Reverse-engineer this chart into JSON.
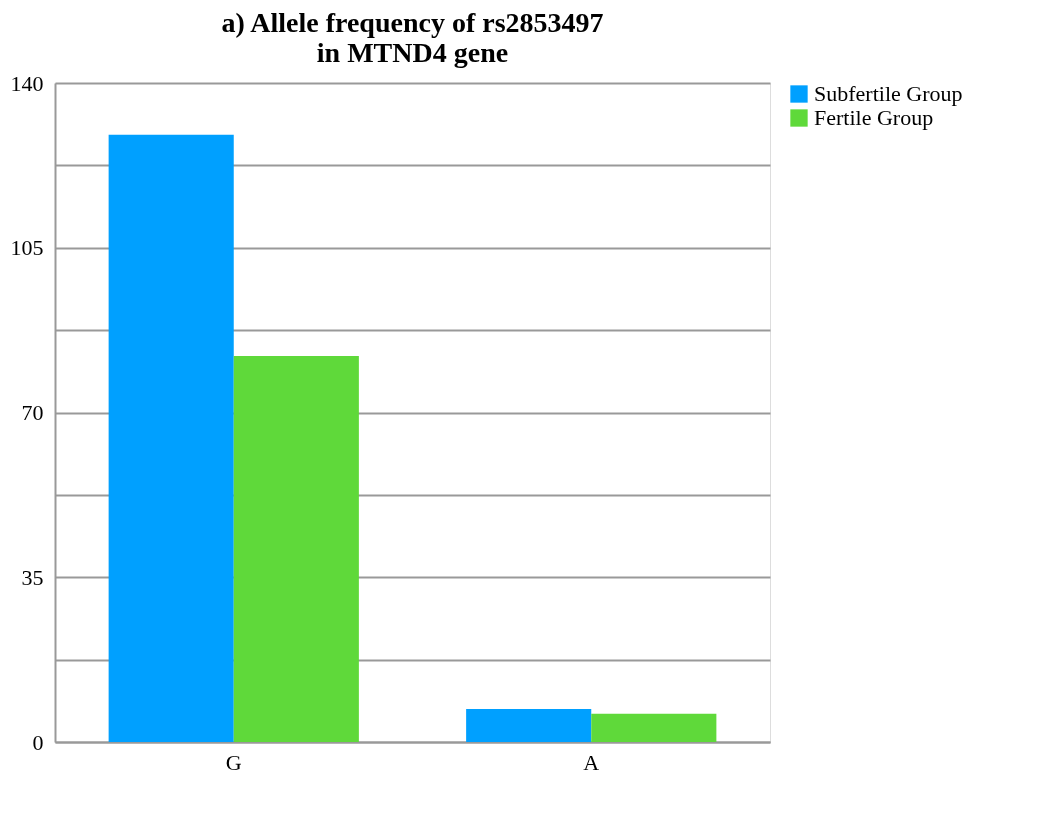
{
  "chart_data": {
    "type": "bar",
    "title": "a) Allele frequency of rs2853497\nin MTND4 gene",
    "categories": [
      "G",
      "A"
    ],
    "series": [
      {
        "name": "Subfertile Group",
        "color": "#00a0ff",
        "values": [
          129,
          7
        ]
      },
      {
        "name": "Fertile Group",
        "color": "#5fd93a",
        "values": [
          82,
          6
        ]
      }
    ],
    "ylim": [
      0,
      140
    ],
    "yticks": [
      0,
      {
        "value": 17.5,
        "label": null
      },
      35,
      {
        "value": 52.5,
        "label": null
      },
      70,
      {
        "value": 87.5,
        "label": null
      },
      105,
      {
        "value": 122.5,
        "label": null
      },
      140
    ],
    "grid": "y",
    "legend": "right"
  }
}
